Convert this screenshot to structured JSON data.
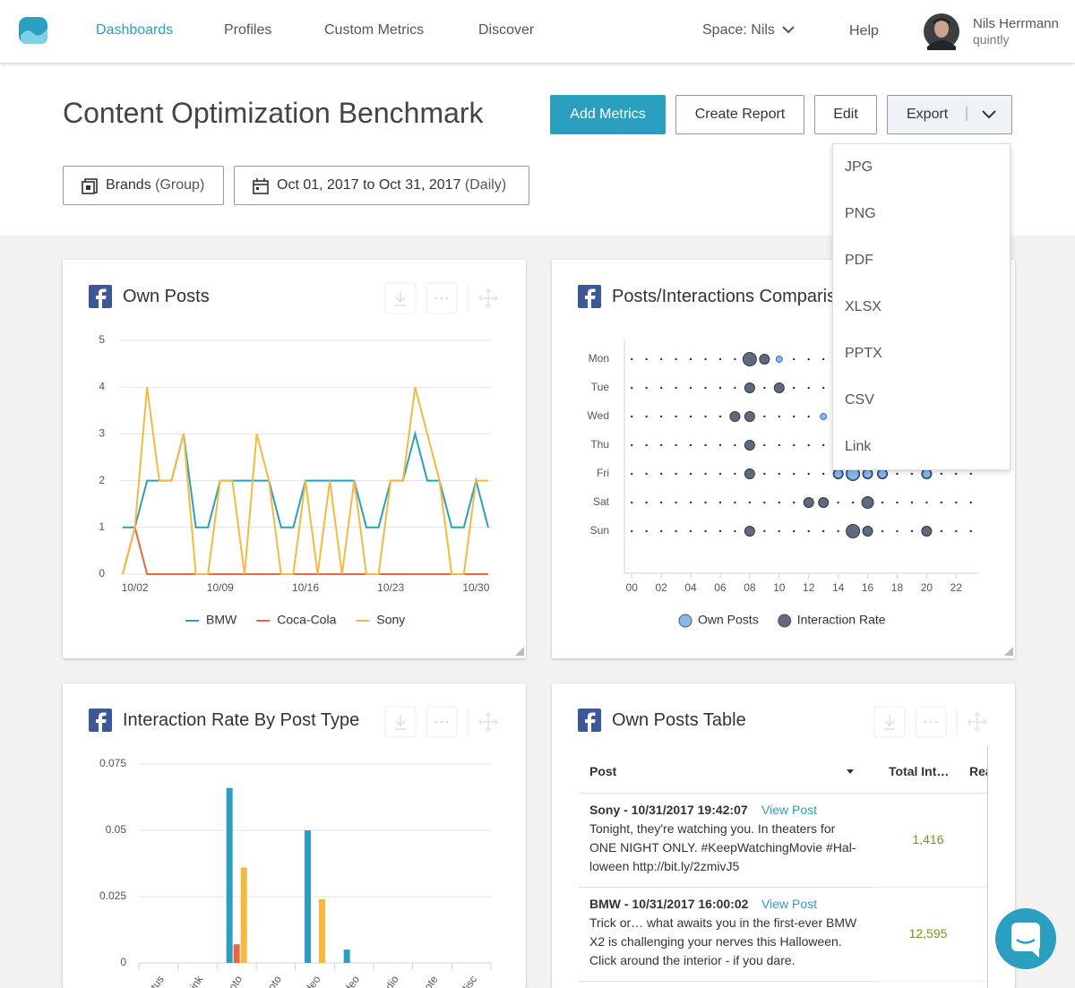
{
  "nav": {
    "items": [
      "Dashboards",
      "Profiles",
      "Custom Metrics",
      "Discover"
    ],
    "space": "Space: Nils",
    "help": "Help",
    "user": "Nils Herrmann",
    "account": "quintly"
  },
  "header": {
    "title": "Content Optimization Benchmark",
    "buttons": [
      "Add Metrics",
      "Create Report",
      "Edit",
      "Export"
    ],
    "export_menu": [
      "JPG",
      "PNG",
      "PDF",
      "XLSX",
      "PPTX",
      "CSV",
      "Link"
    ],
    "filters": [
      {
        "label": "Brands",
        "detail": "(Group)"
      },
      {
        "label": "Oct 01, 2017 to Oct 31, 2017",
        "detail": "(Daily)"
      }
    ]
  },
  "widgets": [
    "Own Posts",
    "Posts/Interactions Comparison",
    "Interaction Rate By Post Type",
    "Own Posts Table"
  ],
  "chart_data": [
    {
      "type": "line",
      "categories": [
        null,
        "10/02",
        null,
        null,
        null,
        null,
        null,
        null,
        "10/09",
        null,
        null,
        null,
        null,
        null,
        null,
        "10/16",
        null,
        null,
        null,
        null,
        null,
        null,
        "10/23",
        null,
        null,
        null,
        null,
        null,
        null,
        "10/30",
        null
      ],
      "ylim": [
        0,
        5
      ],
      "yticks": [
        0,
        1,
        2,
        3,
        4,
        5
      ],
      "grid": true,
      "series": [
        {
          "name": "BMW",
          "color": "#2a9fc0",
          "values": [
            1,
            1,
            2,
            2,
            2,
            3,
            1,
            1,
            2,
            2,
            2,
            2,
            2,
            1,
            1,
            2,
            2,
            2,
            2,
            2,
            1,
            1,
            2,
            2,
            3,
            2,
            2,
            1,
            1,
            2,
            1
          ]
        },
        {
          "name": "Coca-Cola",
          "color": "#e8673c",
          "values": [
            0,
            1,
            0,
            0,
            0,
            0,
            0,
            0,
            0,
            0,
            0,
            0,
            0,
            0,
            0,
            0,
            0,
            0,
            0,
            0,
            0,
            0,
            0,
            0,
            0,
            0,
            0,
            0,
            0,
            0,
            0
          ]
        },
        {
          "name": "Sony",
          "color": "#f5b942",
          "values": [
            0,
            1,
            4,
            2,
            2,
            3,
            0,
            0,
            2,
            2,
            0,
            3,
            2,
            0,
            0,
            2,
            0,
            2,
            0,
            2,
            0,
            0,
            2,
            2,
            4,
            3,
            2,
            0,
            0,
            2,
            2
          ]
        }
      ]
    },
    {
      "type": "punchcard",
      "categories": [
        "Mon",
        "Tue",
        "Wed",
        "Thu",
        "Fri",
        "Sat",
        "Sun"
      ],
      "xlim": [
        -0.5,
        23.5
      ],
      "xticks": [
        {
          "value": 0,
          "label": "00"
        },
        {
          "value": 2,
          "label": "02"
        },
        {
          "value": 4,
          "label": "04"
        },
        {
          "value": 6,
          "label": "06"
        },
        {
          "value": 8,
          "label": "08"
        },
        10,
        12,
        14,
        16,
        18,
        20,
        22
      ],
      "series": [
        {
          "name": "Interaction Rate",
          "color": "#5f6b7d",
          "x": [
            8,
            9,
            8,
            10,
            7,
            8,
            8,
            8,
            14,
            15,
            16,
            17,
            20,
            12,
            13,
            16,
            8,
            15,
            16,
            20
          ],
          "y": [
            "Mon",
            "Mon",
            "Tue",
            "Tue",
            "Wed",
            "Wed",
            "Thu",
            "Fri",
            "Fri",
            "Fri",
            "Fri",
            "Fri",
            "Fri",
            "Sat",
            "Sat",
            "Sat",
            "Sun",
            "Sun",
            "Sun",
            "Sun"
          ],
          "sizes": [
            3,
            2,
            2,
            2,
            2,
            2,
            2,
            2,
            2,
            3,
            2,
            2,
            2,
            2,
            2,
            2.5,
            2,
            3,
            2,
            2
          ]
        },
        {
          "name": "Own Posts",
          "color": "#8ab8ec",
          "x": [
            10,
            13,
            14,
            15,
            16,
            17,
            20
          ],
          "y": [
            "Mon",
            "Wed",
            "Fri",
            "Fri",
            "Fri",
            "Fri",
            "Fri"
          ],
          "sizes": [
            1,
            1,
            1.5,
            2.5,
            1.5,
            1.5,
            1.5
          ]
        }
      ]
    },
    {
      "type": "bar",
      "categories": [
        "Status",
        "Link",
        "Photo",
        "Photo",
        "Video",
        "Video",
        "Audio",
        "Note",
        "Misc"
      ],
      "ylim": [
        0,
        0.075
      ],
      "yticks": [
        0,
        0.025,
        0.05,
        0.075
      ],
      "grid": true,
      "series": [
        {
          "color": "#2a9fc0",
          "values": [
            0,
            0,
            0.066,
            0,
            0.05,
            0.005,
            0,
            0,
            0
          ]
        },
        {
          "color": "#e8673c",
          "values": [
            0,
            0,
            0.007,
            0,
            0,
            0,
            0,
            0,
            0
          ]
        },
        {
          "color": "#f5b942",
          "values": [
            0,
            0,
            0.036,
            0,
            0.024,
            0,
            0,
            0,
            0
          ]
        }
      ]
    }
  ],
  "table": {
    "columns": [
      "Post",
      "Total Int…",
      "Rea"
    ],
    "rows": [
      {
        "author": "Sony - 10/31/2017 19:42:07",
        "link": "View Post",
        "lines": [
          "Tonight, they're watching you. In theaters for",
          "ONE NIGHT ONLY. #KeepWatchingMovie #Hal-",
          "loween http://bit.ly/2zmivJ5"
        ],
        "total": "1,416"
      },
      {
        "author": "BMW - 10/31/2017 16:00:02",
        "link": "View Post",
        "lines": [
          "Trick or… what awaits you in the first-ever BMW",
          "X2 is challenging your nerves this Halloween.",
          "Click around the interior - if you dare."
        ],
        "total": "12,595"
      }
    ]
  }
}
